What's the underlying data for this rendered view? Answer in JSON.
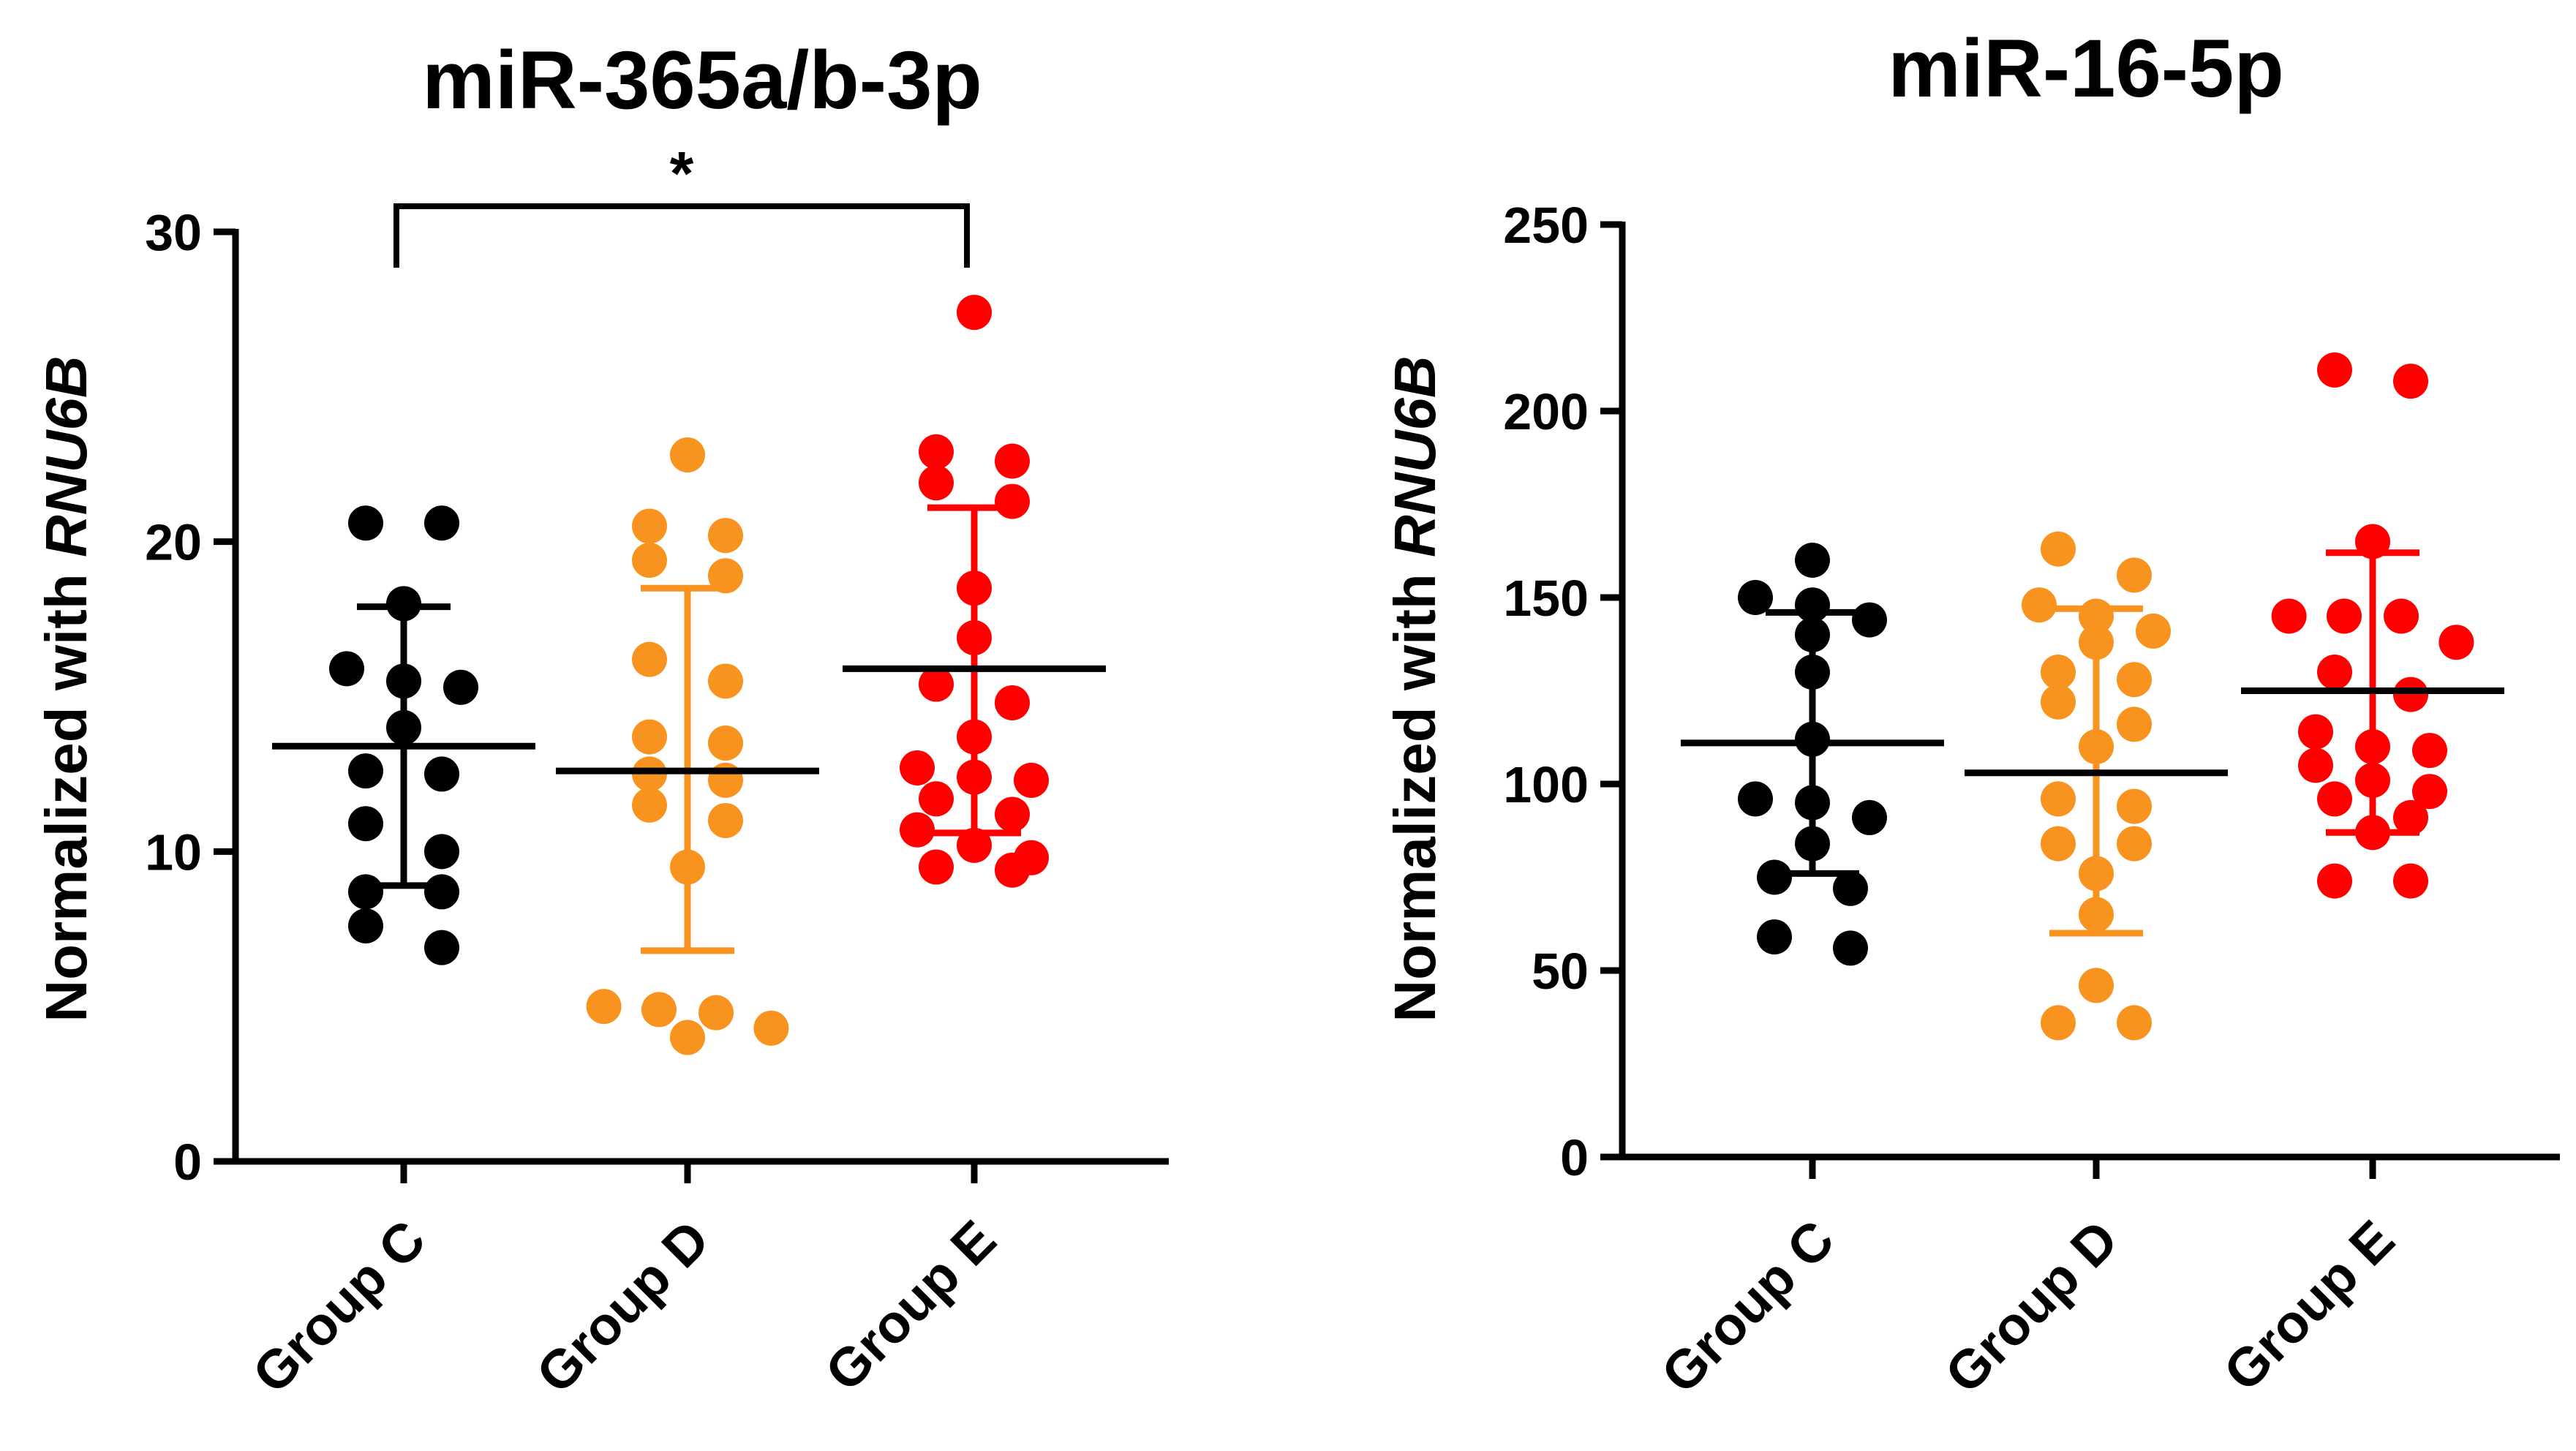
{
  "chart_data": [
    {
      "type": "scatter",
      "title": "miR-365a/b-3p",
      "ylabel_prefix": "Normalized with ",
      "ylabel_italic": "RNU6B",
      "xlabel": "",
      "ylim": [
        0,
        30
      ],
      "yticks": [
        0,
        10,
        20,
        30
      ],
      "categories": [
        "Group C",
        "Group D",
        "Group E"
      ],
      "significance": {
        "from": "Group C",
        "to": "Group E",
        "label": "*"
      },
      "series": [
        {
          "name": "Group C",
          "color": "#000000",
          "mean": 13.4,
          "sd_low": 8.9,
          "sd_high": 17.9,
          "points": [
            20.6,
            20.6,
            18.0,
            15.9,
            15.5,
            15.3,
            14.0,
            12.6,
            12.5,
            10.9,
            10.0,
            8.7,
            8.7,
            7.6,
            6.9
          ]
        },
        {
          "name": "Group D",
          "color": "#F7931E",
          "mean": 12.6,
          "sd_low": 6.8,
          "sd_high": 18.5,
          "points": [
            22.8,
            20.5,
            20.2,
            19.4,
            18.9,
            16.2,
            15.5,
            13.7,
            13.5,
            12.5,
            12.3,
            11.5,
            11.0,
            9.5,
            5.0,
            4.9,
            4.8,
            4.3,
            4.0
          ]
        },
        {
          "name": "Group E",
          "color": "#FF0000",
          "mean": 15.9,
          "sd_low": 10.6,
          "sd_high": 21.1,
          "points": [
            27.4,
            22.9,
            22.6,
            21.9,
            21.3,
            18.5,
            16.9,
            15.4,
            14.8,
            13.7,
            12.7,
            12.4,
            12.3,
            11.7,
            11.2,
            10.7,
            10.2,
            9.8,
            9.5,
            9.4
          ]
        }
      ]
    },
    {
      "type": "scatter",
      "title": "miR-16-5p",
      "ylabel_prefix": "Normalized with ",
      "ylabel_italic": "RNU6B",
      "xlabel": "",
      "ylim": [
        0,
        250
      ],
      "yticks": [
        0,
        50,
        100,
        150,
        200,
        250
      ],
      "categories": [
        "Group C",
        "Group D",
        "Group E"
      ],
      "series": [
        {
          "name": "Group C",
          "color": "#000000",
          "mean": 111,
          "sd_low": 76,
          "sd_high": 146,
          "points": [
            160,
            150,
            148,
            144,
            140,
            130,
            112,
            96,
            95,
            91,
            84,
            75,
            72,
            59,
            56
          ]
        },
        {
          "name": "Group D",
          "color": "#F7931E",
          "mean": 103,
          "sd_low": 60,
          "sd_high": 147,
          "points": [
            163,
            156,
            148,
            145,
            141,
            138,
            130,
            128,
            122,
            116,
            110,
            96,
            94,
            84,
            84,
            76,
            65,
            46,
            36,
            36
          ]
        },
        {
          "name": "Group E",
          "color": "#FF0000",
          "mean": 125,
          "sd_low": 87,
          "sd_high": 162,
          "points": [
            211,
            208,
            165,
            145,
            145,
            145,
            138,
            130,
            124,
            114,
            110,
            109,
            105,
            101,
            98,
            96,
            91,
            87,
            74,
            74
          ]
        }
      ]
    }
  ]
}
